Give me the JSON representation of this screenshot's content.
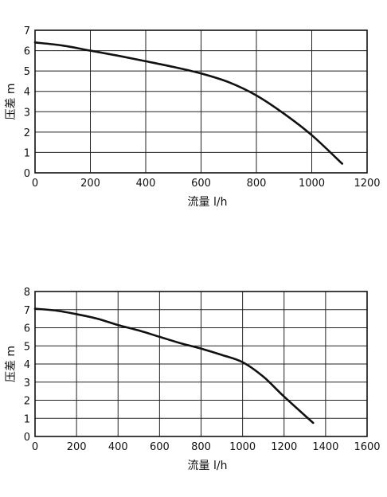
{
  "chart_data": [
    {
      "type": "line",
      "xlabel": "流量 l/h",
      "ylabel": "压差 m",
      "xlim": [
        0,
        1200
      ],
      "ylim": [
        0,
        7
      ],
      "xticks": [
        0,
        200,
        400,
        600,
        800,
        1000,
        1200
      ],
      "yticks": [
        0,
        1,
        2,
        3,
        4,
        5,
        6,
        7
      ],
      "grid": true,
      "series": [
        {
          "x": [
            0,
            100,
            200,
            300,
            400,
            500,
            600,
            700,
            800,
            900,
            1000,
            1110
          ],
          "y": [
            6.4,
            6.25,
            6.0,
            5.75,
            5.48,
            5.2,
            4.88,
            4.45,
            3.8,
            2.9,
            1.85,
            0.45
          ]
        }
      ]
    },
    {
      "type": "line",
      "xlabel": "流量 l/h",
      "ylabel": "压差 m",
      "xlim": [
        0,
        1600
      ],
      "ylim": [
        0,
        8
      ],
      "xticks": [
        0,
        200,
        400,
        600,
        800,
        1000,
        1200,
        1400,
        1600
      ],
      "yticks": [
        0,
        1,
        2,
        3,
        4,
        5,
        6,
        7,
        8
      ],
      "grid": true,
      "series": [
        {
          "x": [
            0,
            100,
            200,
            300,
            400,
            500,
            600,
            700,
            800,
            900,
            1000,
            1100,
            1200,
            1340
          ],
          "y": [
            7.05,
            6.95,
            6.75,
            6.5,
            6.15,
            5.85,
            5.5,
            5.15,
            4.85,
            4.5,
            4.1,
            3.3,
            2.2,
            0.75
          ]
        }
      ]
    }
  ]
}
